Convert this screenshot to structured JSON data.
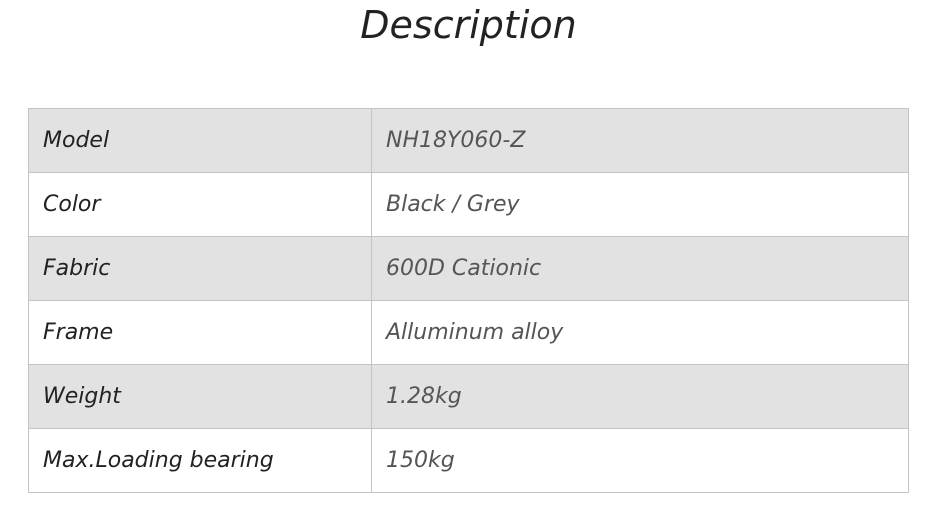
{
  "title": "Description",
  "rows": [
    {
      "label": "Model",
      "value": "NH18Y060-Z"
    },
    {
      "label": "Color",
      "value": "Black / Grey"
    },
    {
      "label": "Fabric",
      "value": "600D  Cationic"
    },
    {
      "label": "Frame",
      "value": "Alluminum alloy"
    },
    {
      "label": "Weight",
      "value": "1.28kg"
    },
    {
      "label": "Max.Loading bearing",
      "value": "150kg"
    }
  ]
}
